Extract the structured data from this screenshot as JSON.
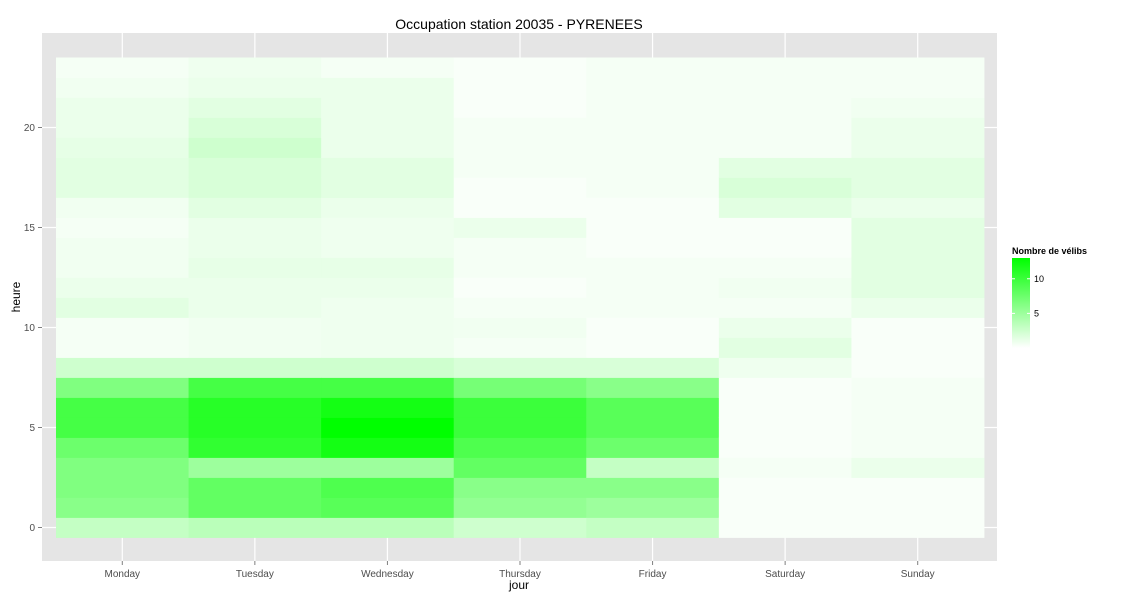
{
  "chart_data": {
    "type": "heatmap",
    "title": "Occupation station 20035 - PYRENEES",
    "xlabel": "jour",
    "ylabel": "heure",
    "x": [
      "Monday",
      "Tuesday",
      "Wednesday",
      "Thursday",
      "Friday",
      "Saturday",
      "Sunday"
    ],
    "y": [
      0,
      1,
      2,
      3,
      4,
      5,
      6,
      7,
      8,
      9,
      10,
      11,
      12,
      13,
      14,
      15,
      16,
      17,
      18,
      19,
      20,
      21,
      22,
      23
    ],
    "ylim": [
      -0.5,
      23.5
    ],
    "yticks": [
      0,
      5,
      10,
      15,
      20
    ],
    "grid": true,
    "legend": {
      "title": "Nombre de vélibs",
      "ticks": [
        5,
        10
      ],
      "range": [
        0,
        13
      ],
      "low_color": "#ffffff",
      "high_color": "#00ff00",
      "position": "right"
    },
    "values": [
      [
        3.0,
        6.0,
        6.5,
        6.5,
        7.5,
        9.5,
        9.5,
        6.5,
        2.5,
        0.5,
        0.5,
        1.5,
        1.0,
        0.7,
        0.7,
        0.5,
        0.7,
        1.5,
        1.5,
        1.3,
        1.0,
        1.0,
        0.7,
        0.5
      ],
      [
        3.5,
        8.0,
        8.0,
        5.0,
        10.5,
        11.0,
        11.0,
        9.5,
        2.5,
        0.7,
        0.7,
        1.0,
        1.0,
        1.2,
        1.0,
        1.0,
        1.5,
        2.0,
        2.0,
        2.5,
        2.0,
        1.5,
        1.0,
        0.8
      ],
      [
        3.5,
        8.5,
        9.0,
        5.0,
        12.0,
        13.0,
        12.0,
        9.5,
        2.5,
        0.8,
        0.8,
        0.8,
        1.0,
        1.2,
        0.8,
        0.8,
        1.0,
        1.5,
        1.5,
        1.0,
        1.0,
        1.0,
        1.0,
        0.5
      ],
      [
        2.5,
        5.5,
        6.0,
        8.0,
        9.0,
        10.0,
        10.0,
        7.0,
        2.0,
        0.5,
        0.7,
        0.5,
        0.3,
        0.5,
        0.5,
        1.0,
        0.3,
        0.3,
        0.5,
        0.5,
        0.5,
        0.3,
        0.3,
        0.3
      ],
      [
        3.0,
        5.0,
        6.0,
        3.0,
        7.5,
        8.5,
        8.5,
        6.0,
        2.0,
        0.3,
        0.3,
        0.5,
        0.5,
        0.5,
        0.3,
        0.3,
        0.3,
        0.5,
        0.5,
        0.5,
        0.5,
        0.5,
        0.5,
        0.5
      ],
      [
        0.3,
        0.3,
        0.3,
        0.5,
        0.3,
        0.3,
        0.3,
        0.3,
        0.8,
        1.5,
        1.0,
        0.5,
        0.7,
        0.5,
        0.3,
        0.3,
        1.5,
        2.0,
        1.5,
        0.5,
        0.5,
        0.5,
        0.5,
        0.5
      ],
      [
        0.3,
        0.3,
        0.3,
        1.0,
        0.5,
        0.5,
        0.5,
        0.5,
        0.3,
        0.3,
        0.3,
        1.0,
        1.5,
        1.5,
        1.5,
        1.5,
        1.0,
        1.5,
        1.5,
        1.0,
        1.0,
        0.7,
        0.5,
        0.5
      ]
    ]
  }
}
